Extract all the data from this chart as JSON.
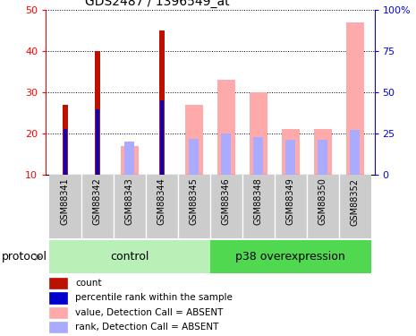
{
  "title": "GDS2487 / 1396549_at",
  "samples": [
    "GSM88341",
    "GSM88342",
    "GSM88343",
    "GSM88344",
    "GSM88345",
    "GSM88346",
    "GSM88348",
    "GSM88349",
    "GSM88350",
    "GSM88352"
  ],
  "count_values": [
    27,
    40,
    null,
    45,
    null,
    null,
    null,
    null,
    null,
    null
  ],
  "percentile_values": [
    21,
    26,
    null,
    28,
    null,
    null,
    null,
    null,
    null,
    null
  ],
  "absent_value": [
    null,
    null,
    17,
    null,
    27,
    33,
    30,
    21,
    21,
    47
  ],
  "absent_rank": [
    null,
    null,
    20,
    null,
    22,
    25,
    23,
    21,
    21,
    27
  ],
  "ylim_left": [
    10,
    50
  ],
  "ylim_right": [
    0,
    100
  ],
  "yticks_left": [
    10,
    20,
    30,
    40,
    50
  ],
  "yticks_right": [
    0,
    25,
    50,
    75,
    100
  ],
  "ytick_labels_right": [
    "0",
    "25",
    "50",
    "75",
    "100%"
  ],
  "groups": [
    {
      "label": "control",
      "n_samples": 5,
      "color": "#b8f0b8"
    },
    {
      "label": "p38 overexpression",
      "n_samples": 5,
      "color": "#50d850"
    }
  ],
  "count_color": "#bb1100",
  "percentile_color": "#0000cc",
  "absent_value_color": "#ffaaaa",
  "absent_rank_color": "#aaaaff",
  "legend_items": [
    {
      "label": "count",
      "color": "#bb1100"
    },
    {
      "label": "percentile rank within the sample",
      "color": "#0000cc"
    },
    {
      "label": "value, Detection Call = ABSENT",
      "color": "#ffaaaa"
    },
    {
      "label": "rank, Detection Call = ABSENT",
      "color": "#aaaaff"
    }
  ]
}
